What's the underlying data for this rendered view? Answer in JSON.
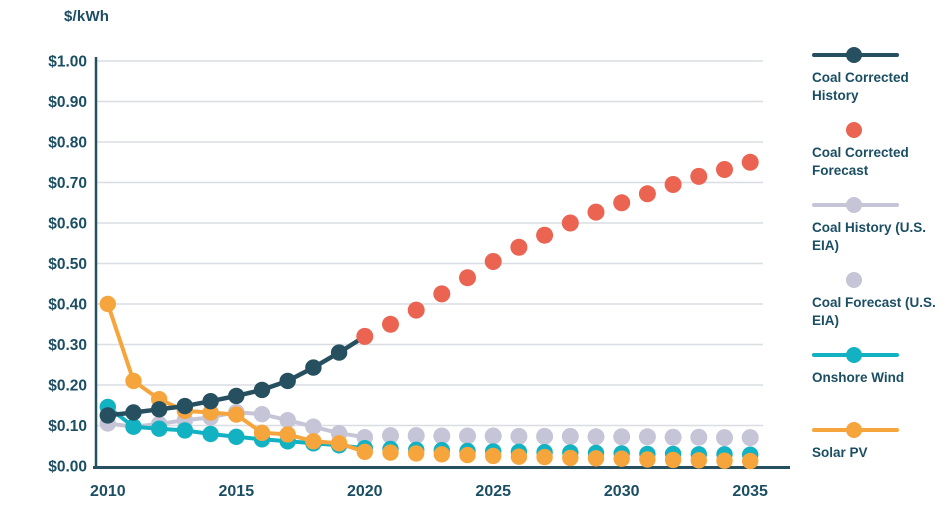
{
  "chart_data": {
    "type": "line",
    "title": "$/kWh",
    "ylabel": "$/kWh",
    "xlabel": "",
    "xlim": [
      2009.5,
      2035.5
    ],
    "ylim": [
      0,
      1.0
    ],
    "grid": "horizontal",
    "legend_position": "right",
    "x_ticks": [
      2010,
      2015,
      2020,
      2025,
      2030,
      2035
    ],
    "y_ticks": [
      {
        "value": 1.0,
        "label": "$1.00"
      },
      {
        "value": 0.9,
        "label": "$0.90"
      },
      {
        "value": 0.8,
        "label": "$0.80"
      },
      {
        "value": 0.7,
        "label": "$0.70"
      },
      {
        "value": 0.6,
        "label": "$0.60"
      },
      {
        "value": 0.5,
        "label": "$0.50"
      },
      {
        "value": 0.4,
        "label": "$0.40"
      },
      {
        "value": 0.3,
        "label": "$0.30"
      },
      {
        "value": 0.2,
        "label": "$0.20"
      },
      {
        "value": 0.1,
        "label": "$0.10"
      },
      {
        "value": 0.0,
        "label": "$0.00"
      }
    ],
    "series": [
      {
        "name": "Coal Corrected History",
        "color": "#26505f",
        "marker": "circle",
        "line": true,
        "x": [
          2010,
          2011,
          2012,
          2013,
          2014,
          2015,
          2016,
          2017,
          2018,
          2019,
          2020
        ],
        "values": [
          0.125,
          0.132,
          0.14,
          0.148,
          0.16,
          0.173,
          0.188,
          0.21,
          0.243,
          0.28,
          0.32
        ]
      },
      {
        "name": "Coal Corrected Forecast",
        "color": "#eb6351",
        "marker": "circle",
        "line": false,
        "x": [
          2020,
          2021,
          2022,
          2023,
          2024,
          2025,
          2026,
          2027,
          2028,
          2029,
          2030,
          2031,
          2032,
          2033,
          2034,
          2035
        ],
        "values": [
          0.32,
          0.35,
          0.385,
          0.425,
          0.465,
          0.505,
          0.54,
          0.57,
          0.6,
          0.627,
          0.65,
          0.672,
          0.695,
          0.715,
          0.732,
          0.75
        ]
      },
      {
        "name": "Coal History (U.S. EIA)",
        "color": "#c6c4d7",
        "marker": "circle",
        "line": true,
        "x": [
          2010,
          2011,
          2012,
          2013,
          2014,
          2015,
          2016,
          2017,
          2018,
          2019,
          2020
        ],
        "values": [
          0.105,
          0.097,
          0.104,
          0.113,
          0.12,
          0.133,
          0.128,
          0.113,
          0.097,
          0.081,
          0.071
        ]
      },
      {
        "name": "Coal Forecast (U.S. EIA)",
        "color": "#c6c4d7",
        "marker": "circle",
        "line": false,
        "x": [
          2021,
          2022,
          2023,
          2024,
          2025,
          2026,
          2027,
          2028,
          2029,
          2030,
          2031,
          2032,
          2033,
          2034,
          2035
        ],
        "values": [
          0.075,
          0.075,
          0.074,
          0.074,
          0.074,
          0.073,
          0.073,
          0.073,
          0.072,
          0.072,
          0.072,
          0.071,
          0.071,
          0.07,
          0.07
        ]
      },
      {
        "name": "Onshore Wind",
        "color": "#12b2c3",
        "marker": "circle",
        "line": true,
        "line_until": 2020,
        "x": [
          2010,
          2011,
          2012,
          2013,
          2014,
          2015,
          2016,
          2017,
          2018,
          2019,
          2020,
          2021,
          2022,
          2023,
          2024,
          2025,
          2026,
          2027,
          2028,
          2029,
          2030,
          2031,
          2032,
          2033,
          2034,
          2035
        ],
        "values": [
          0.146,
          0.097,
          0.092,
          0.088,
          0.079,
          0.072,
          0.066,
          0.061,
          0.056,
          0.051,
          0.044,
          0.042,
          0.04,
          0.039,
          0.037,
          0.036,
          0.035,
          0.034,
          0.033,
          0.032,
          0.031,
          0.03,
          0.03,
          0.029,
          0.029,
          0.028
        ]
      },
      {
        "name": "Solar PV",
        "color": "#f6a53d",
        "marker": "circle",
        "line": true,
        "line_until": 2020,
        "x": [
          2010,
          2011,
          2012,
          2013,
          2014,
          2015,
          2016,
          2017,
          2018,
          2019,
          2020,
          2021,
          2022,
          2023,
          2024,
          2025,
          2026,
          2027,
          2028,
          2029,
          2030,
          2031,
          2032,
          2033,
          2034,
          2035
        ],
        "values": [
          0.4,
          0.21,
          0.165,
          0.136,
          0.132,
          0.127,
          0.082,
          0.078,
          0.061,
          0.056,
          0.035,
          0.033,
          0.031,
          0.029,
          0.027,
          0.025,
          0.023,
          0.022,
          0.02,
          0.019,
          0.018,
          0.016,
          0.015,
          0.014,
          0.013,
          0.012
        ]
      }
    ]
  },
  "legend": {
    "items": [
      {
        "label": "Coal Corrected History",
        "symbol": "line-dot",
        "color": "#26505f"
      },
      {
        "label": "Coal Corrected Forecast",
        "symbol": "dot",
        "color": "#eb6351"
      },
      {
        "label": "Coal History (U.S. EIA)",
        "symbol": "line-dot",
        "color": "#c6c4d7"
      },
      {
        "label": "Coal Forecast (U.S. EIA)",
        "symbol": "dot",
        "color": "#c6c4d7"
      },
      {
        "label": "Onshore Wind",
        "symbol": "line-dot",
        "color": "#12b2c3"
      },
      {
        "label": "Solar PV",
        "symbol": "line-dot",
        "color": "#f6a53d"
      }
    ]
  },
  "styles": {
    "text_color": "#1b4e63",
    "grid_color": "#d9dee3",
    "axis_color": "#26505f",
    "background": "#ffffff"
  }
}
